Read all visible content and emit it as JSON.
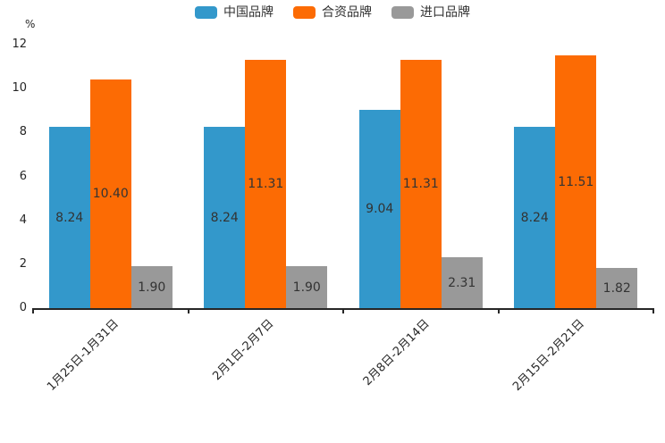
{
  "chart_data": {
    "type": "bar",
    "categories": [
      "1月25日-1月31日",
      "2月1日-2月7日",
      "2月8日-2月14日",
      "2月15日-2月21日"
    ],
    "series": [
      {
        "name": "中国品牌",
        "color": "#3398cb",
        "values": [
          8.24,
          8.24,
          9.04,
          8.24
        ]
      },
      {
        "name": "合资品牌",
        "color": "#fc6b04",
        "values": [
          10.4,
          11.31,
          11.31,
          11.51
        ]
      },
      {
        "name": "进口品牌",
        "color": "#999999",
        "values": [
          1.9,
          1.9,
          2.31,
          1.82
        ]
      }
    ],
    "value_labels": [
      [
        "8.24",
        "10.40",
        "1.90"
      ],
      [
        "8.24",
        "11.31",
        "1.90"
      ],
      [
        "9.04",
        "11.31",
        "2.31"
      ],
      [
        "8.24",
        "11.51",
        "1.82"
      ]
    ],
    "ylabel": "%",
    "yticks": [
      0,
      2,
      4,
      6,
      8,
      10,
      12
    ],
    "ylim": [
      0,
      12
    ],
    "legend_position": "top",
    "grid": false,
    "axis_color": "#262626",
    "value_label_color": "#333333"
  }
}
